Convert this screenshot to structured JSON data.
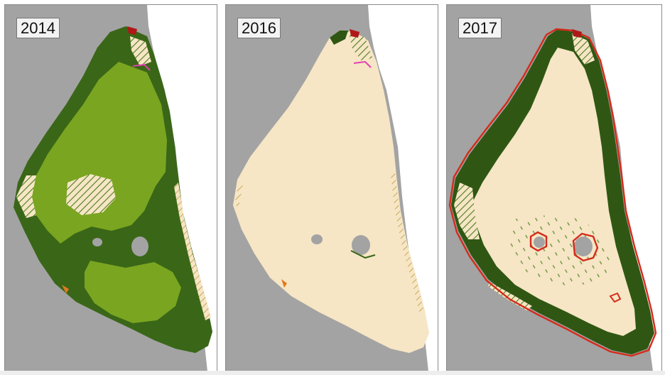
{
  "panels": [
    {
      "year": "2014"
    },
    {
      "year": "2016"
    },
    {
      "year": "2017"
    }
  ],
  "colors": {
    "land": "#ffffff",
    "water_background": "#a3a3a3",
    "dense_seagrass": "#2f5713",
    "medium_seagrass": "#7aa520",
    "bare_sediment": "#f6e6c5",
    "sparse_hatch": "#d8c27a",
    "patch_edge_red": "#d42b1c",
    "patch_pink": "#e040b0",
    "patch_orange": "#e07a20"
  }
}
